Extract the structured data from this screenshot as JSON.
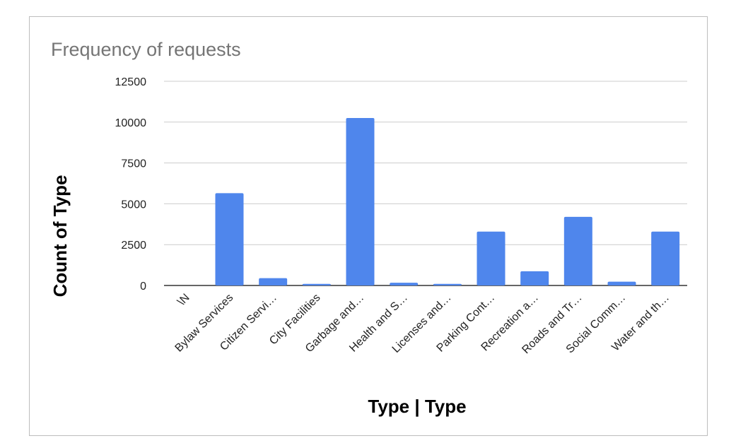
{
  "chart_data": {
    "type": "bar",
    "title": "Frequency of requests",
    "xlabel": "Type | Type",
    "ylabel": "Count of Type",
    "ylim": [
      0,
      12500
    ],
    "yticks": [
      0,
      2500,
      5000,
      7500,
      10000,
      12500
    ],
    "grid": true,
    "legend": "none",
    "bar_color": "#4f86ec",
    "categories": [
      "\\N",
      "Bylaw Services",
      "Citizen Servi…",
      "City Facilities",
      "Garbage and…",
      "Health and S…",
      "Licenses and…",
      "Parking Cont…",
      "Recreation a…",
      "Roads and Tr…",
      "Social Comm…",
      "Water and th…"
    ],
    "values": [
      0,
      5650,
      450,
      100,
      10250,
      170,
      100,
      3300,
      870,
      4200,
      230,
      3300
    ]
  }
}
